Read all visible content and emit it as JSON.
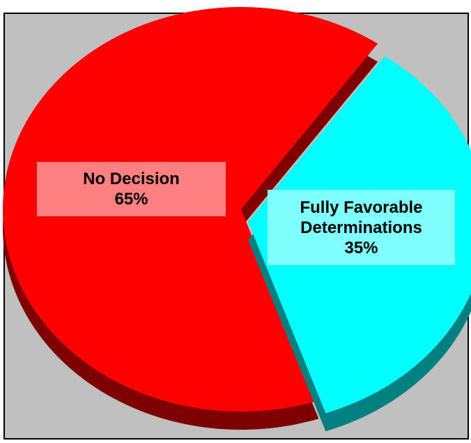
{
  "chart_data": {
    "type": "pie",
    "title": "",
    "slices": [
      {
        "label_line1": "No Decision",
        "label_line2": "",
        "percent_text": "65%",
        "value": 65,
        "color": "#ff0000",
        "side_color": "#7f0000",
        "label_bg": "#ff8080"
      },
      {
        "label_line1": "Fully Favorable",
        "label_line2": "Determinations",
        "percent_text": "35%",
        "value": 35,
        "color": "#00ffff",
        "side_color": "#008080",
        "label_bg": "#80ffff"
      }
    ],
    "style": "3d-exploded",
    "background": "#c0c0c0"
  }
}
